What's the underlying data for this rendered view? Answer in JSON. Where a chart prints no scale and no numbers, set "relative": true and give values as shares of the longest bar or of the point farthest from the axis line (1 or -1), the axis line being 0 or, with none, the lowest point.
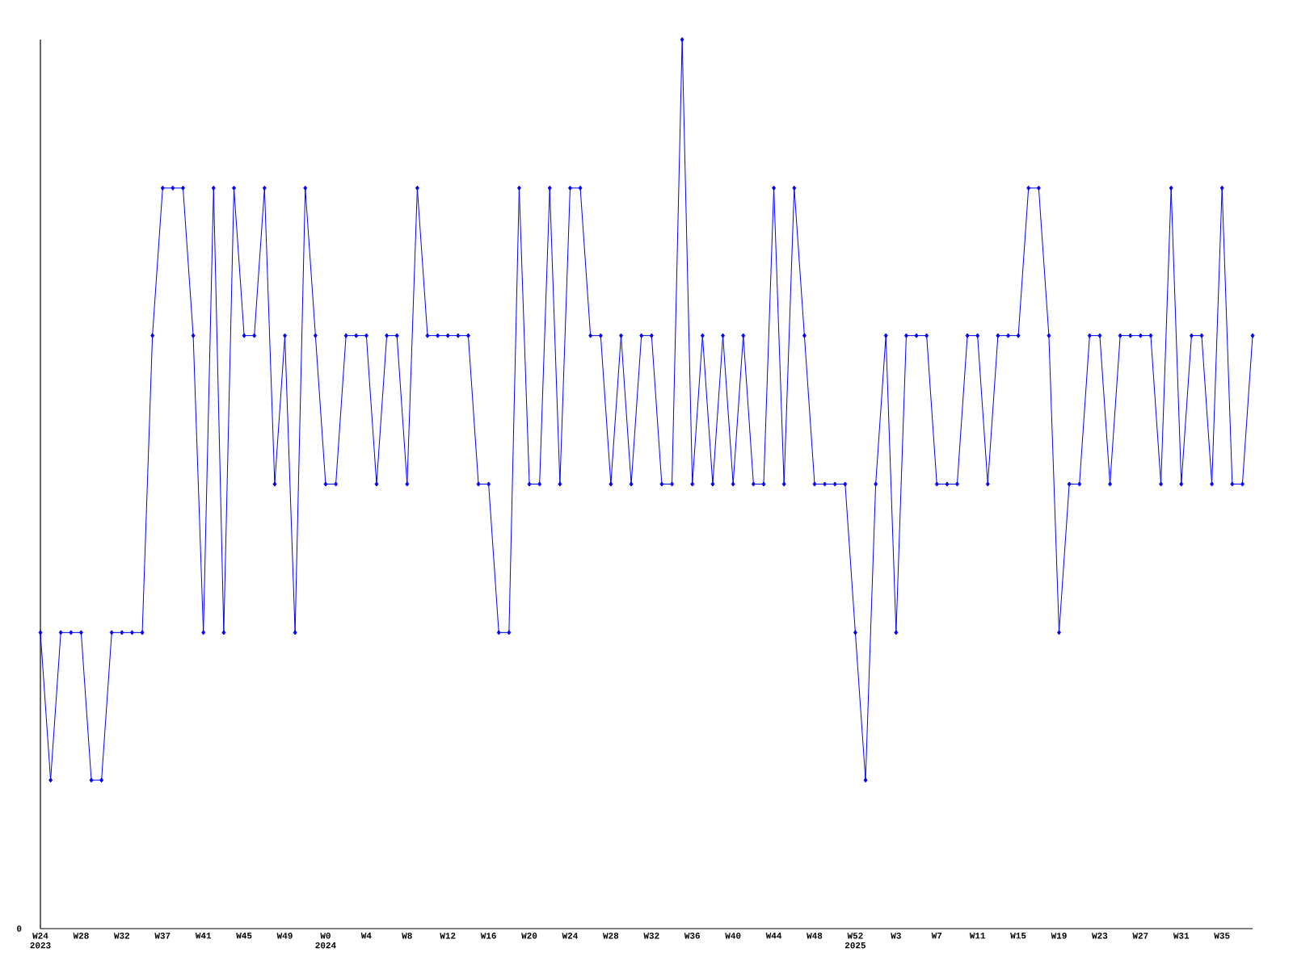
{
  "chart_data": {
    "type": "line",
    "relative": true,
    "marker": "diamond",
    "line_style": "solid",
    "categories": [
      "W24 2023",
      null,
      null,
      null,
      "W28",
      null,
      null,
      null,
      "W32",
      null,
      null,
      null,
      "W37",
      null,
      null,
      null,
      "W41",
      null,
      null,
      null,
      "W45",
      null,
      null,
      null,
      "W49",
      null,
      null,
      null,
      "W0 2024",
      null,
      null,
      null,
      "W4",
      null,
      null,
      null,
      "W8",
      null,
      null,
      null,
      "W12",
      null,
      null,
      null,
      "W16",
      null,
      null,
      null,
      "W20",
      null,
      null,
      null,
      "W24",
      null,
      null,
      null,
      "W28",
      null,
      null,
      null,
      "W32",
      null,
      null,
      null,
      "W36",
      null,
      null,
      null,
      "W40",
      null,
      null,
      null,
      "W44",
      null,
      null,
      null,
      "W48",
      null,
      null,
      null,
      "W52 2025",
      null,
      null,
      null,
      "W3",
      null,
      null,
      null,
      "W7",
      null,
      null,
      null,
      "W11",
      null,
      null,
      null,
      "W15",
      null,
      null,
      null,
      "W19",
      null,
      null,
      null,
      "W23",
      null,
      null,
      null,
      "W27",
      null,
      null,
      null,
      "W31",
      null,
      null,
      null,
      "W35",
      null,
      null,
      null
    ],
    "series": [
      {
        "color": "#0000ff",
        "values": [
          0.333,
          0.167,
          0.333,
          0.333,
          0.333,
          0.167,
          0.167,
          0.333,
          0.333,
          0.333,
          0.333,
          0.667,
          0.833,
          0.833,
          0.833,
          0.667,
          0.333,
          0.833,
          0.333,
          0.833,
          0.667,
          0.667,
          0.833,
          0.5,
          0.667,
          0.333,
          0.833,
          0.667,
          0.5,
          0.5,
          0.667,
          0.667,
          0.667,
          0.5,
          0.667,
          0.667,
          0.5,
          0.833,
          0.667,
          0.667,
          0.667,
          0.667,
          0.667,
          0.5,
          0.5,
          0.333,
          0.333,
          0.833,
          0.5,
          0.5,
          0.833,
          0.5,
          0.833,
          0.833,
          0.667,
          0.667,
          0.5,
          0.667,
          0.5,
          0.667,
          0.667,
          0.5,
          0.5,
          1,
          0.5,
          0.667,
          0.5,
          0.667,
          0.5,
          0.667,
          0.5,
          0.5,
          0.833,
          0.5,
          0.833,
          0.667,
          0.5,
          0.5,
          0.5,
          0.5,
          0.333,
          0.167,
          0.5,
          0.667,
          0.333,
          0.667,
          0.667,
          0.667,
          0.5,
          0.5,
          0.5,
          0.667,
          0.667,
          0.5,
          0.667,
          0.667,
          0.667,
          0.833,
          0.833,
          0.667,
          0.333,
          0.5,
          0.5,
          0.667,
          0.667,
          0.5,
          0.667,
          0.667,
          0.667,
          0.667,
          0.5,
          0.833,
          0.5,
          0.667,
          0.667,
          0.5,
          0.833,
          0.5,
          0.5,
          0.667
        ]
      }
    ],
    "annotations": [
      "0"
    ]
  }
}
